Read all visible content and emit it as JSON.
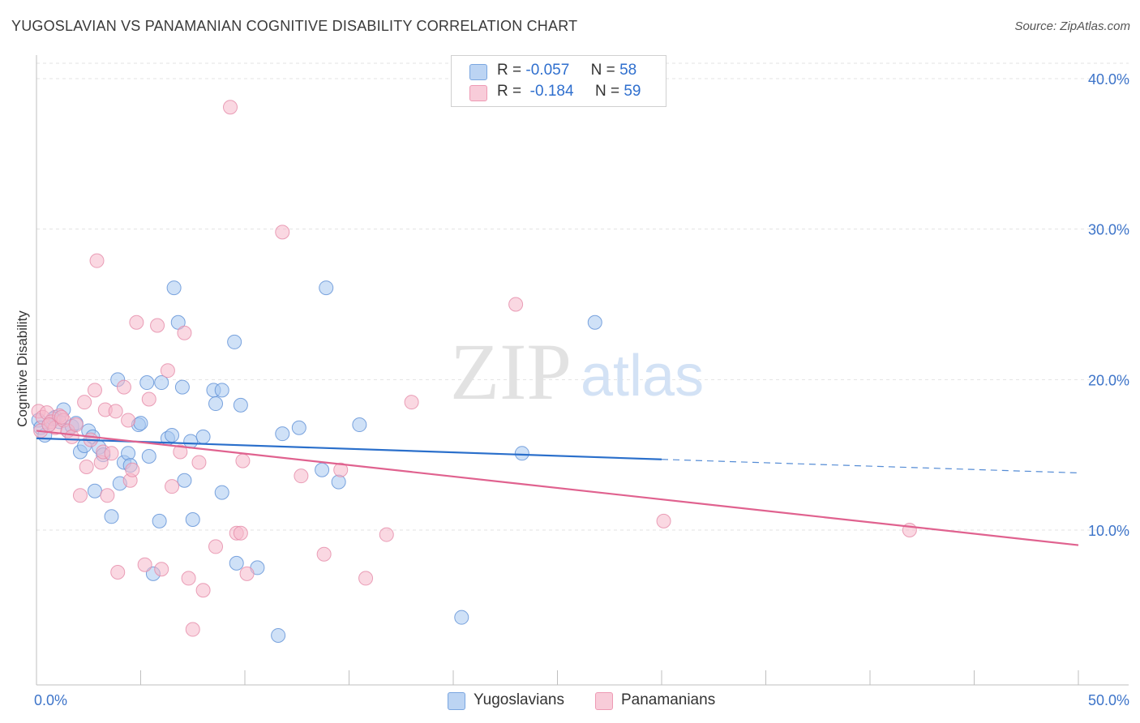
{
  "title": "YUGOSLAVIAN VS PANAMANIAN COGNITIVE DISABILITY CORRELATION CHART",
  "source": "Source: ZipAtlas.com",
  "watermark": {
    "zip": "ZIP",
    "atlas": "atlas"
  },
  "legend": {
    "rows": [
      {
        "r_label": "R =",
        "r_value": "-0.057",
        "n_label": "N =",
        "n_value": "58",
        "color": "#a8c8f0"
      },
      {
        "r_label": "R =",
        "r_value": "-0.184",
        "n_label": "N =",
        "n_value": "59",
        "color": "#f5b8cb"
      }
    ]
  },
  "bottom_legend": [
    {
      "label": "Yugoslavians",
      "color": "#a8c8f0"
    },
    {
      "label": "Panamanians",
      "color": "#f5b8cb"
    }
  ],
  "chart_data": {
    "type": "scatter",
    "title": "YUGOSLAVIAN VS PANAMANIAN COGNITIVE DISABILITY CORRELATION CHART",
    "xlabel": "",
    "ylabel": "Cognitive Disability",
    "xlim": [
      0,
      50
    ],
    "ylim": [
      0,
      42
    ],
    "x_tick_labels": [
      "0.0%",
      "50.0%"
    ],
    "y_ticks": [
      10,
      20,
      30,
      40
    ],
    "y_tick_labels": [
      "10.0%",
      "20.0%",
      "30.0%",
      "40.0%"
    ],
    "grid": true,
    "series": [
      {
        "name": "Yugoslavians",
        "color": "#a8c8f0",
        "stroke": "#5d8fd6",
        "trend_color": "#2a6fcb",
        "trend": {
          "x0": 0,
          "y0": 16.1,
          "x1": 30,
          "y1": 14.7,
          "dash_to_x": 50,
          "dash_to_y": 13.8
        },
        "points": [
          [
            0.1,
            17.3
          ],
          [
            0.2,
            16.8
          ],
          [
            0.4,
            16.3
          ],
          [
            0.6,
            17.0
          ],
          [
            0.9,
            17.5
          ],
          [
            1.1,
            17.2
          ],
          [
            1.3,
            18.0
          ],
          [
            1.5,
            16.6
          ],
          [
            1.7,
            16.9
          ],
          [
            1.9,
            17.1
          ],
          [
            2.1,
            15.2
          ],
          [
            2.3,
            15.6
          ],
          [
            2.5,
            16.6
          ],
          [
            2.7,
            16.2
          ],
          [
            2.8,
            12.6
          ],
          [
            3.0,
            15.5
          ],
          [
            3.2,
            15.0
          ],
          [
            3.6,
            10.9
          ],
          [
            3.9,
            20.0
          ],
          [
            4.0,
            13.1
          ],
          [
            4.2,
            14.5
          ],
          [
            4.4,
            15.1
          ],
          [
            4.5,
            14.3
          ],
          [
            4.9,
            17.0
          ],
          [
            5.0,
            17.1
          ],
          [
            5.3,
            19.8
          ],
          [
            5.4,
            14.9
          ],
          [
            5.6,
            7.1
          ],
          [
            5.9,
            10.6
          ],
          [
            6.0,
            19.8
          ],
          [
            6.3,
            16.1
          ],
          [
            6.5,
            16.3
          ],
          [
            6.6,
            26.1
          ],
          [
            6.8,
            23.8
          ],
          [
            7.0,
            19.5
          ],
          [
            7.1,
            13.3
          ],
          [
            7.4,
            15.9
          ],
          [
            7.5,
            10.7
          ],
          [
            8.0,
            16.2
          ],
          [
            8.5,
            19.3
          ],
          [
            8.6,
            18.4
          ],
          [
            8.9,
            19.3
          ],
          [
            8.9,
            12.5
          ],
          [
            9.5,
            22.5
          ],
          [
            9.6,
            7.8
          ],
          [
            9.8,
            18.3
          ],
          [
            10.6,
            7.5
          ],
          [
            11.6,
            3.0
          ],
          [
            11.8,
            16.4
          ],
          [
            12.6,
            16.8
          ],
          [
            13.7,
            14.0
          ],
          [
            13.9,
            26.1
          ],
          [
            14.5,
            13.2
          ],
          [
            15.5,
            17.0
          ],
          [
            20.4,
            4.2
          ],
          [
            23.3,
            15.1
          ],
          [
            26.8,
            23.8
          ],
          [
            0.8,
            17.4
          ]
        ]
      },
      {
        "name": "Panamanians",
        "color": "#f5b8cb",
        "stroke": "#e589a8",
        "trend_color": "#e0628f",
        "trend": {
          "x0": 0,
          "y0": 16.6,
          "x1": 50,
          "y1": 9.0
        },
        "points": [
          [
            0.1,
            17.9
          ],
          [
            0.3,
            17.5
          ],
          [
            0.5,
            17.8
          ],
          [
            0.7,
            17.2
          ],
          [
            0.9,
            16.8
          ],
          [
            1.1,
            17.6
          ],
          [
            1.3,
            17.3
          ],
          [
            1.5,
            16.6
          ],
          [
            1.7,
            16.2
          ],
          [
            1.9,
            17.0
          ],
          [
            2.1,
            12.3
          ],
          [
            2.3,
            18.5
          ],
          [
            2.4,
            14.2
          ],
          [
            2.6,
            16.0
          ],
          [
            2.8,
            19.3
          ],
          [
            2.9,
            27.9
          ],
          [
            3.1,
            14.5
          ],
          [
            3.2,
            15.2
          ],
          [
            3.3,
            18.0
          ],
          [
            3.4,
            12.3
          ],
          [
            3.6,
            15.1
          ],
          [
            3.8,
            17.9
          ],
          [
            3.9,
            7.2
          ],
          [
            4.2,
            19.5
          ],
          [
            4.4,
            17.3
          ],
          [
            4.5,
            13.3
          ],
          [
            4.6,
            14.0
          ],
          [
            4.8,
            23.8
          ],
          [
            5.2,
            7.7
          ],
          [
            5.4,
            18.7
          ],
          [
            5.8,
            23.6
          ],
          [
            6.0,
            7.4
          ],
          [
            6.3,
            20.6
          ],
          [
            6.5,
            12.9
          ],
          [
            6.9,
            15.2
          ],
          [
            7.1,
            23.1
          ],
          [
            7.3,
            6.8
          ],
          [
            7.5,
            3.4
          ],
          [
            7.8,
            14.5
          ],
          [
            8.0,
            6.0
          ],
          [
            8.6,
            8.9
          ],
          [
            9.3,
            38.1
          ],
          [
            9.6,
            9.8
          ],
          [
            9.8,
            9.8
          ],
          [
            9.9,
            14.6
          ],
          [
            10.1,
            7.1
          ],
          [
            11.8,
            29.8
          ],
          [
            12.7,
            13.6
          ],
          [
            13.8,
            8.4
          ],
          [
            14.6,
            14.0
          ],
          [
            15.8,
            6.8
          ],
          [
            16.8,
            9.7
          ],
          [
            18.0,
            18.5
          ],
          [
            23.0,
            25.0
          ],
          [
            30.1,
            10.6
          ],
          [
            41.9,
            10.0
          ],
          [
            0.2,
            16.6
          ],
          [
            1.2,
            17.5
          ],
          [
            0.6,
            17.0
          ]
        ]
      }
    ]
  }
}
